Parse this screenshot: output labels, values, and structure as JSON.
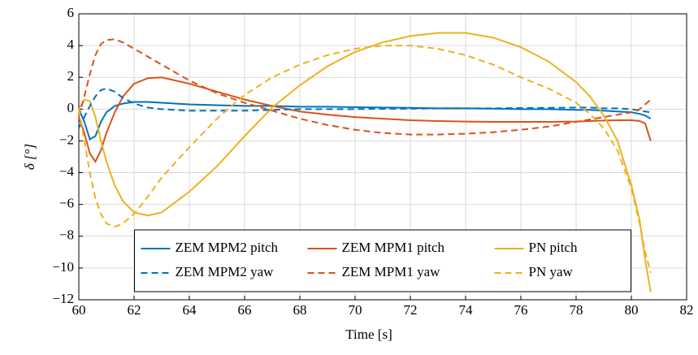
{
  "chart_data": {
    "type": "line",
    "xlabel": "Time [s]",
    "ylabel": "δ [°]",
    "x": [
      60,
      60.2,
      60.4,
      60.6,
      60.8,
      61,
      61.3,
      61.6,
      62,
      62.5,
      63,
      64,
      65,
      66,
      67,
      68,
      69,
      70,
      71,
      72,
      73,
      74,
      75,
      76,
      77,
      78,
      78.5,
      79,
      79.5,
      80,
      80.3,
      80.5,
      80.7
    ],
    "series": [
      {
        "name": "ZEM MPM2 pitch",
        "color": "#0072bd",
        "style": "solid",
        "values": [
          0,
          -0.8,
          -1.9,
          -1.7,
          -0.8,
          -0.2,
          0.2,
          0.35,
          0.45,
          0.45,
          0.4,
          0.3,
          0.25,
          0.2,
          0.2,
          0.15,
          0.15,
          0.12,
          0.1,
          0.08,
          0.05,
          0.05,
          0.03,
          0,
          0,
          -0.05,
          -0.05,
          -0.1,
          -0.15,
          -0.2,
          -0.3,
          -0.4,
          -0.6
        ]
      },
      {
        "name": "ZEM MPM1 pitch",
        "color": "#d95319",
        "style": "solid",
        "values": [
          -0.5,
          -1.5,
          -2.8,
          -3.3,
          -2.6,
          -1.5,
          -0.2,
          0.8,
          1.6,
          1.95,
          2.0,
          1.6,
          1.1,
          0.6,
          0.2,
          -0.15,
          -0.35,
          -0.5,
          -0.6,
          -0.7,
          -0.75,
          -0.78,
          -0.8,
          -0.8,
          -0.8,
          -0.78,
          -0.75,
          -0.72,
          -0.7,
          -0.7,
          -0.75,
          -0.9,
          -2.0
        ]
      },
      {
        "name": "PN pitch",
        "color": "#edb120",
        "style": "solid",
        "values": [
          0,
          0.6,
          0.5,
          -0.5,
          -2,
          -3.3,
          -4.8,
          -5.8,
          -6.5,
          -6.7,
          -6.5,
          -5.2,
          -3.6,
          -1.7,
          0.1,
          1.5,
          2.7,
          3.6,
          4.2,
          4.6,
          4.8,
          4.8,
          4.5,
          3.9,
          3.0,
          1.7,
          0.8,
          -0.4,
          -2.0,
          -4.8,
          -7.0,
          -9.5,
          -11.5
        ]
      },
      {
        "name": "ZEM MPM2 yaw",
        "color": "#0072bd",
        "style": "dashed",
        "values": [
          -1.2,
          -0.5,
          0.2,
          0.8,
          1.2,
          1.3,
          1.1,
          0.7,
          0.35,
          0.1,
          0,
          -0.1,
          -0.1,
          -0.1,
          -0.05,
          0,
          0,
          0,
          0.02,
          0.03,
          0.05,
          0.05,
          0.05,
          0.07,
          0.08,
          0.1,
          0.1,
          0.05,
          0.05,
          0,
          -0.1,
          -0.15,
          -0.2
        ]
      },
      {
        "name": "ZEM MPM1 yaw",
        "color": "#d95319",
        "style": "dashed",
        "values": [
          -0.5,
          0.8,
          2.2,
          3.4,
          4.1,
          4.35,
          4.4,
          4.2,
          3.8,
          3.3,
          2.8,
          1.8,
          1.0,
          0.4,
          -0.1,
          -0.6,
          -1.0,
          -1.3,
          -1.5,
          -1.6,
          -1.6,
          -1.55,
          -1.45,
          -1.3,
          -1.1,
          -0.8,
          -0.65,
          -0.5,
          -0.35,
          -0.2,
          0,
          0.3,
          0.6
        ]
      },
      {
        "name": "PN yaw",
        "color": "#edb120",
        "style": "dashed",
        "values": [
          0,
          -2,
          -4,
          -5.6,
          -6.6,
          -7.2,
          -7.4,
          -7.2,
          -6.6,
          -5.5,
          -4.3,
          -2.4,
          -0.6,
          0.9,
          2.0,
          2.8,
          3.4,
          3.8,
          4.0,
          4.0,
          3.8,
          3.4,
          2.8,
          2.0,
          1.3,
          0.4,
          -0.3,
          -1.2,
          -2.6,
          -5.0,
          -7.2,
          -9.0,
          -10.3
        ]
      }
    ],
    "xlim": [
      60,
      82
    ],
    "xticks": [
      60,
      62,
      64,
      66,
      68,
      70,
      72,
      74,
      76,
      78,
      80,
      82
    ],
    "ylim": [
      -12,
      6
    ],
    "yticks": [
      {
        "value": -12,
        "label": "−12"
      },
      {
        "value": -10,
        "label": "−10"
      },
      {
        "value": -8,
        "label": "−8"
      },
      {
        "value": -6,
        "label": "−6"
      },
      {
        "value": -4,
        "label": "−4"
      },
      {
        "value": -2,
        "label": "−2"
      },
      0,
      2,
      4,
      6
    ],
    "grid": true,
    "legend": "lower center",
    "legend_columns": 3
  }
}
